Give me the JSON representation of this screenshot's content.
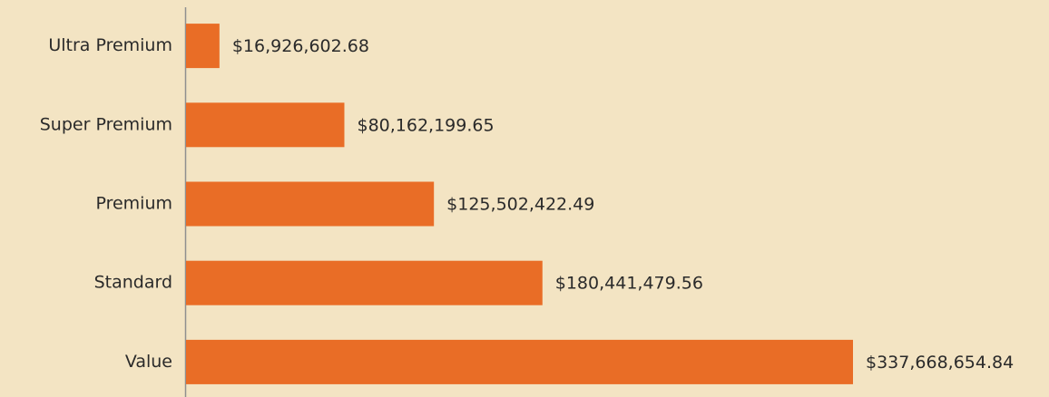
{
  "chart_data": {
    "type": "bar",
    "orientation": "horizontal",
    "categories": [
      "Ultra Premium",
      "Super Premium",
      "Premium",
      "Standard",
      "Value"
    ],
    "values": [
      16926602.68,
      80162199.65,
      125502422.49,
      180441479.56,
      337668654.84
    ],
    "value_labels": [
      "$16,926,602.68",
      "$80,162,199.65",
      "$125,502,422.49",
      "$180,441,479.56",
      "$337,668,654.84"
    ],
    "color": "#e96d26"
  }
}
